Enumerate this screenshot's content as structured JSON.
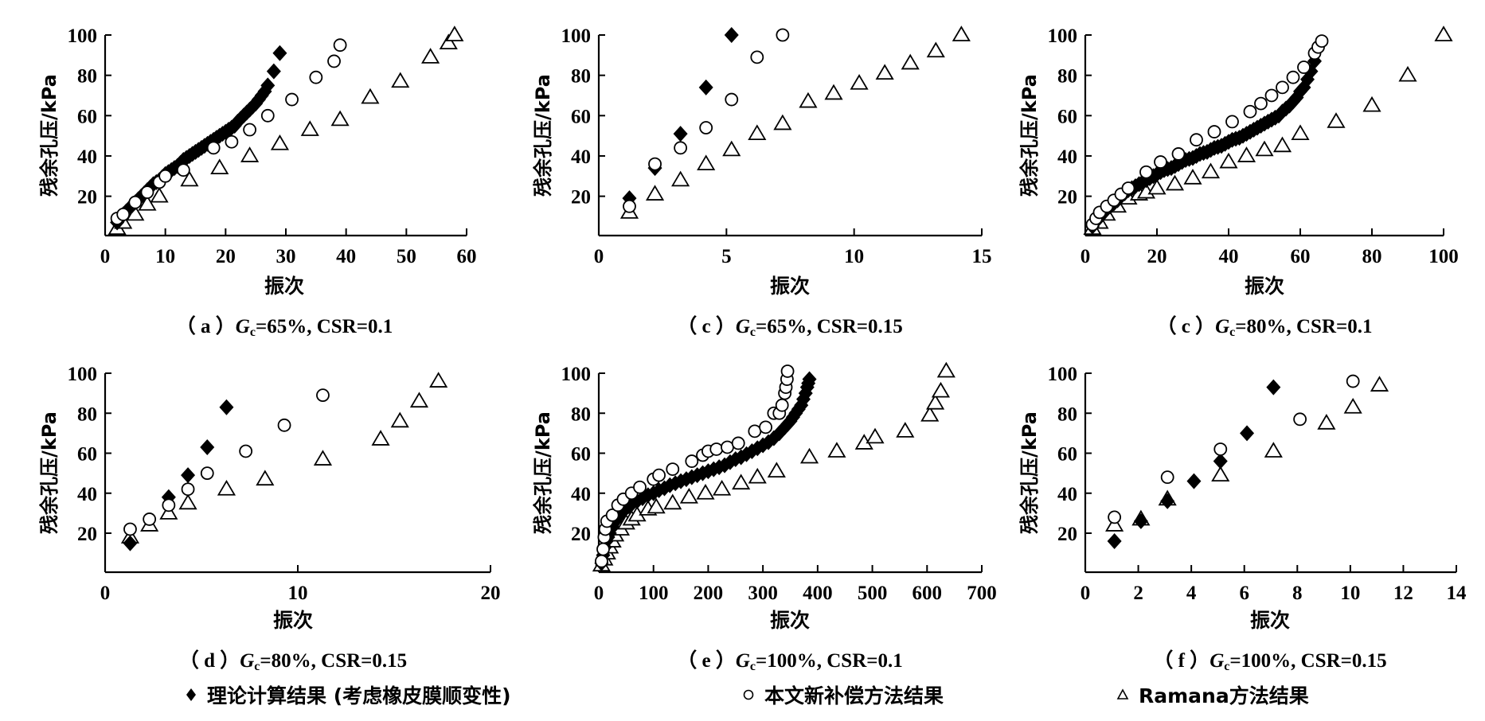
{
  "figure": {
    "legend": {
      "theory": "理论计算结果 (考虑橡皮膜顺变性)",
      "new_method": "本文新补偿方法结果",
      "ramana": "Ramana方法结果"
    }
  },
  "chart_data": [
    {
      "id": "a",
      "type": "scatter",
      "caption_prefix": "（ a ）",
      "caption_symbol": "G",
      "caption_sub": "c",
      "caption_rest": "=65%, CSR=0.1",
      "xlabel": "振次",
      "ylabel": "残余孔压/kPa",
      "xlim": [
        0,
        60
      ],
      "ylim": [
        0,
        100
      ],
      "xticks": [
        0,
        10,
        20,
        30,
        40,
        50,
        60
      ],
      "yticks": [
        20,
        40,
        60,
        80,
        100
      ],
      "series": [
        {
          "name": "理论计算结果 (考虑橡皮膜顺变性)",
          "marker": "diamond",
          "x": [
            2,
            2.5,
            3,
            3.5,
            4,
            4.5,
            5,
            5.5,
            6,
            6.5,
            7,
            7.5,
            8,
            8.5,
            9,
            9.5,
            10,
            10.5,
            11,
            11.5,
            12,
            12.5,
            13,
            13.5,
            14,
            14.5,
            15,
            15.5,
            16,
            16.5,
            17,
            17.5,
            18,
            18.5,
            19,
            19.5,
            20,
            20.5,
            21,
            21.5,
            22,
            22.5,
            23,
            23.5,
            24,
            24.5,
            25,
            25.5,
            26,
            26.5,
            27,
            28,
            29
          ],
          "y": [
            7,
            9,
            11,
            12.5,
            14,
            15.5,
            17,
            18.5,
            20,
            21.5,
            23,
            24.5,
            26,
            27,
            28,
            29.5,
            31,
            32,
            33,
            34,
            35,
            36.5,
            38,
            39,
            40,
            41,
            42,
            43,
            44,
            45,
            46,
            47,
            48,
            49,
            50,
            51,
            52,
            53,
            54,
            55,
            57,
            58.5,
            60,
            61.5,
            63,
            64.5,
            66,
            68,
            70,
            72,
            75,
            82,
            91
          ]
        },
        {
          "name": "本文新补偿方法结果",
          "marker": "circle",
          "x": [
            2,
            3,
            5,
            7,
            9,
            10,
            13,
            18,
            21,
            24,
            27,
            31,
            35,
            38,
            39
          ],
          "y": [
            9,
            11,
            17,
            22,
            27,
            30,
            33,
            44,
            47,
            53,
            60,
            68,
            79,
            87,
            95
          ]
        },
        {
          "name": "Ramana方法结果",
          "marker": "triangle",
          "x": [
            2,
            3,
            5,
            7,
            9,
            14,
            19,
            24,
            29,
            34,
            39,
            44,
            49,
            54,
            57,
            58
          ],
          "y": [
            4,
            7,
            11,
            16,
            20,
            28,
            34,
            40,
            46,
            53,
            58,
            69,
            77,
            89,
            96,
            100
          ]
        }
      ]
    },
    {
      "id": "c1",
      "type": "scatter",
      "caption_prefix": "（ c ）",
      "caption_symbol": "G",
      "caption_sub": "c",
      "caption_rest": "=65%, CSR=0.15",
      "xlabel": "振次",
      "ylabel": "残余孔压/kPa",
      "xlim": [
        0,
        15
      ],
      "ylim": [
        0,
        100
      ],
      "xticks": [
        0,
        5,
        10,
        15
      ],
      "yticks": [
        20,
        40,
        60,
        80,
        100
      ],
      "series": [
        {
          "name": "理论计算结果 (考虑橡皮膜顺变性)",
          "marker": "diamond",
          "x": [
            1.2,
            2.2,
            3.2,
            4.2,
            5.2
          ],
          "y": [
            19,
            34,
            51,
            74,
            100
          ]
        },
        {
          "name": "本文新补偿方法结果",
          "marker": "circle",
          "x": [
            1.2,
            2.2,
            3.2,
            4.2,
            5.2,
            6.2,
            7.2
          ],
          "y": [
            15,
            36,
            44,
            54,
            68,
            89,
            100
          ]
        },
        {
          "name": "Ramana方法结果",
          "marker": "triangle",
          "x": [
            1.2,
            2.2,
            3.2,
            4.2,
            5.2,
            6.2,
            7.2,
            8.2,
            9.2,
            10.2,
            11.2,
            12.2,
            13.2,
            14.2
          ],
          "y": [
            12,
            21,
            28,
            36,
            43,
            51,
            56,
            67,
            71,
            76,
            81,
            86,
            92,
            100
          ]
        }
      ]
    },
    {
      "id": "c2",
      "type": "scatter",
      "caption_prefix": "（ c ）",
      "caption_symbol": "G",
      "caption_sub": "c",
      "caption_rest": "=80%, CSR=0.1",
      "xlabel": "振次",
      "ylabel": "残余孔压/kPa",
      "xlim": [
        0,
        100
      ],
      "ylim": [
        0,
        100
      ],
      "xticks": [
        0,
        20,
        40,
        60,
        80,
        100
      ],
      "yticks": [
        20,
        40,
        60,
        80,
        100
      ],
      "series": [
        {
          "name": "理论计算结果 (考虑橡皮膜顺变性)",
          "marker": "diamond",
          "x": [
            2,
            3,
            4,
            5,
            6,
            7,
            8,
            9,
            10,
            11,
            12,
            13,
            14,
            15,
            16,
            17,
            18,
            19,
            20,
            21,
            22,
            23,
            24,
            25,
            26,
            27,
            28,
            29,
            30,
            31,
            32,
            33,
            34,
            35,
            36,
            37,
            38,
            39,
            40,
            41,
            42,
            43,
            44,
            45,
            46,
            47,
            48,
            49,
            50,
            51,
            52,
            53,
            54,
            55,
            56,
            57,
            58,
            59,
            60,
            61,
            62,
            63,
            64
          ],
          "y": [
            5,
            7.5,
            9.5,
            12,
            13.5,
            15,
            16.5,
            18,
            20,
            21.5,
            23,
            24,
            25,
            26,
            27,
            28,
            29,
            30,
            31,
            32,
            33,
            33.5,
            34,
            35,
            36,
            37,
            38,
            38.5,
            39,
            40,
            41,
            41.5,
            42,
            43,
            44,
            44.5,
            45,
            46,
            47,
            48,
            48.5,
            49,
            50,
            51,
            52,
            53,
            54,
            55,
            56,
            57,
            58,
            59,
            60,
            62,
            63.5,
            65,
            67,
            69,
            72,
            74,
            78,
            82,
            87
          ]
        },
        {
          "name": "本文新补偿方法结果",
          "marker": "circle",
          "x": [
            2,
            3,
            4,
            6,
            8,
            10,
            12,
            17,
            21,
            26,
            31,
            36,
            41,
            46,
            49,
            52,
            55,
            58,
            61,
            64,
            65,
            66
          ],
          "y": [
            6,
            9,
            12,
            15,
            18,
            21,
            24,
            32,
            37,
            41,
            48,
            52,
            57,
            62,
            66,
            70,
            74,
            79,
            84,
            91,
            94,
            97
          ]
        },
        {
          "name": "Ramana方法结果",
          "marker": "triangle",
          "x": [
            2,
            4,
            6,
            9,
            12,
            15,
            17,
            20,
            25,
            30,
            35,
            40,
            45,
            50,
            55,
            60,
            70,
            80,
            90,
            100
          ],
          "y": [
            4,
            7,
            11,
            15,
            19,
            21,
            22,
            24,
            26,
            29,
            32,
            37,
            40,
            43,
            45,
            51,
            57,
            65,
            80,
            100
          ]
        }
      ]
    },
    {
      "id": "d",
      "type": "scatter",
      "caption_prefix": "（ d ）",
      "caption_symbol": "G",
      "caption_sub": "c",
      "caption_rest": "=80%, CSR=0.15",
      "xlabel": "振次",
      "ylabel": "残余孔压/kPa",
      "xlim": [
        0,
        20
      ],
      "ylim": [
        0,
        100
      ],
      "xticks": [
        0,
        10,
        20
      ],
      "yticks": [
        20,
        40,
        60,
        80,
        100
      ],
      "series": [
        {
          "name": "理论计算结果 (考虑橡皮膜顺变性)",
          "marker": "diamond",
          "x": [
            1.3,
            3.3,
            4.3,
            5.3,
            6.3
          ],
          "y": [
            15,
            38,
            49,
            63,
            83
          ]
        },
        {
          "name": "本文新补偿方法结果",
          "marker": "circle",
          "x": [
            1.3,
            2.3,
            3.3,
            4.3,
            5.3,
            7.3,
            9.3,
            11.3
          ],
          "y": [
            22,
            27,
            34,
            42,
            50,
            61,
            74,
            89
          ]
        },
        {
          "name": "Ramana方法结果",
          "marker": "triangle",
          "x": [
            1.3,
            2.3,
            3.3,
            4.3,
            6.3,
            8.3,
            11.3,
            14.3,
            15.3,
            16.3,
            17.3
          ],
          "y": [
            18,
            24,
            30,
            35,
            42,
            47,
            57,
            67,
            76,
            86,
            96
          ]
        }
      ]
    },
    {
      "id": "e",
      "type": "scatter",
      "caption_prefix": "（ e ）",
      "caption_symbol": "G",
      "caption_sub": "c",
      "caption_rest": "=100%, CSR=0.1",
      "xlabel": "振次",
      "ylabel": "残余孔压/kPa",
      "xlim": [
        0,
        700
      ],
      "ylim": [
        0,
        100
      ],
      "xticks": [
        0,
        100,
        200,
        300,
        400,
        500,
        600,
        700
      ],
      "yticks": [
        20,
        40,
        60,
        80,
        100
      ],
      "series": [
        {
          "name": "理论计算结果 (考虑橡皮膜顺变性)",
          "marker": "diamond",
          "x": [
            5,
            8,
            11,
            14,
            17,
            20,
            25,
            30,
            35,
            40,
            45,
            50,
            55,
            60,
            70,
            80,
            90,
            100,
            110,
            120,
            130,
            140,
            150,
            160,
            170,
            180,
            190,
            200,
            210,
            220,
            230,
            240,
            250,
            260,
            270,
            280,
            290,
            300,
            310,
            320,
            330,
            340,
            345,
            350,
            355,
            360,
            365,
            370,
            374,
            378,
            381,
            383,
            385
          ],
          "y": [
            5,
            9,
            13,
            16,
            18,
            20,
            23,
            26,
            28,
            30,
            31.5,
            32.5,
            33.5,
            34.5,
            36,
            37.5,
            39,
            40,
            41.5,
            42.5,
            44,
            45,
            46,
            47,
            48,
            49,
            50,
            51,
            52,
            53,
            54,
            55.5,
            57,
            58,
            59.5,
            61,
            62.5,
            64,
            65.5,
            67.5,
            70,
            73,
            74.5,
            76,
            78,
            80,
            82,
            84,
            87,
            90,
            93,
            95,
            97
          ]
        },
        {
          "name": "本文新补偿方法结果",
          "marker": "circle",
          "x": [
            5,
            8,
            10,
            12,
            15,
            25,
            35,
            45,
            60,
            75,
            100,
            110,
            135,
            170,
            190,
            200,
            215,
            235,
            255,
            285,
            305,
            320,
            330,
            335,
            340,
            342,
            344,
            345
          ],
          "y": [
            6,
            12,
            18,
            22,
            26,
            29,
            34,
            37,
            40,
            43,
            47,
            49,
            52,
            56,
            59,
            61,
            62,
            63,
            65,
            71,
            73,
            80,
            80,
            84,
            90,
            93,
            97,
            101
          ]
        },
        {
          "name": "Ramana方法结果",
          "marker": "triangle",
          "x": [
            5,
            10,
            15,
            20,
            25,
            30,
            40,
            50,
            60,
            70,
            90,
            105,
            135,
            165,
            195,
            225,
            260,
            290,
            325,
            385,
            435,
            485,
            505,
            560,
            605,
            615,
            625,
            635
          ],
          "y": [
            4,
            7,
            10,
            13,
            16,
            19,
            22,
            25,
            27,
            29,
            32,
            33,
            35,
            38,
            40,
            42,
            45,
            48,
            51,
            58,
            61,
            65,
            68,
            71,
            79,
            85,
            91,
            101
          ]
        }
      ]
    },
    {
      "id": "f",
      "type": "scatter",
      "caption_prefix": "（ f ）",
      "caption_symbol": "G",
      "caption_sub": "c",
      "caption_rest": "=100%, CSR=0.15",
      "xlabel": "振次",
      "ylabel": "残余孔压/kPa",
      "xlim": [
        0,
        14
      ],
      "ylim": [
        0,
        100
      ],
      "xticks": [
        0,
        2,
        4,
        6,
        8,
        10,
        12,
        14
      ],
      "yticks": [
        20,
        40,
        60,
        80,
        100
      ],
      "series": [
        {
          "name": "理论计算结果 (考虑橡皮膜顺变性)",
          "marker": "diamond",
          "x": [
            1.1,
            2.1,
            3.1,
            4.1,
            5.1,
            6.1,
            7.1
          ],
          "y": [
            16,
            26,
            36,
            46,
            56,
            70,
            93
          ]
        },
        {
          "name": "本文新补偿方法结果",
          "marker": "circle",
          "x": [
            1.1,
            3.1,
            5.1,
            8.1,
            10.1
          ],
          "y": [
            28,
            48,
            62,
            77,
            96
          ]
        },
        {
          "name": "Ramana方法结果",
          "marker": "triangle",
          "x": [
            1.1,
            2.1,
            3.1,
            5.1,
            7.1,
            9.1,
            10.1,
            11.1
          ],
          "y": [
            24,
            27,
            37,
            49,
            61,
            75,
            83,
            94
          ]
        }
      ]
    }
  ]
}
